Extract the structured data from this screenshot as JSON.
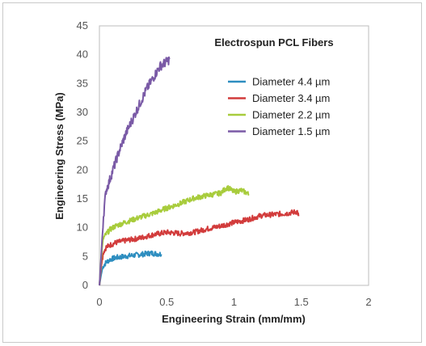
{
  "chart_data": {
    "type": "line",
    "title": "Electrospun PCL Fibers",
    "xlabel": "Engineering Strain (mm/mm)",
    "ylabel": "Engineering Stress (MPa)",
    "xlim": [
      0,
      2
    ],
    "ylim": [
      0,
      45
    ],
    "xticks": [
      0,
      0.5,
      1,
      1.5,
      2
    ],
    "xtick_labels": [
      "0",
      "0.5",
      "1",
      "1.5",
      "2"
    ],
    "yticks": [
      0,
      5,
      10,
      15,
      20,
      25,
      30,
      35,
      40,
      45
    ],
    "ytick_labels": [
      "0",
      "5",
      "10",
      "15",
      "20",
      "25",
      "30",
      "35",
      "40",
      "45"
    ],
    "grid": false,
    "legend_position": "top-right",
    "series": [
      {
        "name": "Diameter 4.4 µm",
        "color": "#2e8ec0",
        "points": [
          [
            0,
            0
          ],
          [
            0.01,
            1.5
          ],
          [
            0.02,
            2.7
          ],
          [
            0.03,
            3.4
          ],
          [
            0.05,
            4.0
          ],
          [
            0.08,
            4.5
          ],
          [
            0.12,
            4.8
          ],
          [
            0.18,
            5.0
          ],
          [
            0.25,
            5.2
          ],
          [
            0.32,
            5.4
          ],
          [
            0.38,
            5.6
          ],
          [
            0.42,
            5.5
          ],
          [
            0.46,
            5.4
          ]
        ]
      },
      {
        "name": "Diameter 3.4 µm",
        "color": "#d23c3c",
        "points": [
          [
            0,
            0
          ],
          [
            0.01,
            2.5
          ],
          [
            0.02,
            4.5
          ],
          [
            0.03,
            5.8
          ],
          [
            0.05,
            6.6
          ],
          [
            0.08,
            7.0
          ],
          [
            0.12,
            7.4
          ],
          [
            0.2,
            7.8
          ],
          [
            0.3,
            8.2
          ],
          [
            0.4,
            8.8
          ],
          [
            0.5,
            9.2
          ],
          [
            0.6,
            9.0
          ],
          [
            0.7,
            9.2
          ],
          [
            0.8,
            9.8
          ],
          [
            0.9,
            10.3
          ],
          [
            1.0,
            10.9
          ],
          [
            1.1,
            11.4
          ],
          [
            1.2,
            12.1
          ],
          [
            1.3,
            12.3
          ],
          [
            1.4,
            12.5
          ],
          [
            1.47,
            12.8
          ],
          [
            1.48,
            12.0
          ]
        ]
      },
      {
        "name": "Diameter 2.2 µm",
        "color": "#a8cc3c",
        "points": [
          [
            0,
            0
          ],
          [
            0.01,
            3.5
          ],
          [
            0.02,
            6.5
          ],
          [
            0.03,
            8.2
          ],
          [
            0.05,
            8.9
          ],
          [
            0.08,
            9.7
          ],
          [
            0.12,
            10.3
          ],
          [
            0.2,
            11.0
          ],
          [
            0.3,
            11.8
          ],
          [
            0.4,
            12.5
          ],
          [
            0.5,
            13.4
          ],
          [
            0.6,
            14.2
          ],
          [
            0.7,
            15.1
          ],
          [
            0.8,
            15.6
          ],
          [
            0.9,
            16.0
          ],
          [
            0.95,
            17.0
          ],
          [
            1.0,
            16.2
          ],
          [
            1.05,
            16.5
          ],
          [
            1.1,
            16.0
          ],
          [
            1.11,
            15.6
          ]
        ]
      },
      {
        "name": "Diameter 1.5 µm",
        "color": "#7a5aa6",
        "points": [
          [
            0,
            0
          ],
          [
            0.01,
            4
          ],
          [
            0.02,
            8
          ],
          [
            0.03,
            12
          ],
          [
            0.04,
            14.5
          ],
          [
            0.05,
            16.5
          ],
          [
            0.07,
            17.8
          ],
          [
            0.1,
            20
          ],
          [
            0.15,
            23.5
          ],
          [
            0.2,
            26.5
          ],
          [
            0.25,
            29
          ],
          [
            0.3,
            31.5
          ],
          [
            0.35,
            34
          ],
          [
            0.4,
            36
          ],
          [
            0.45,
            38
          ],
          [
            0.5,
            38.8
          ],
          [
            0.52,
            39.2
          ]
        ]
      }
    ]
  }
}
